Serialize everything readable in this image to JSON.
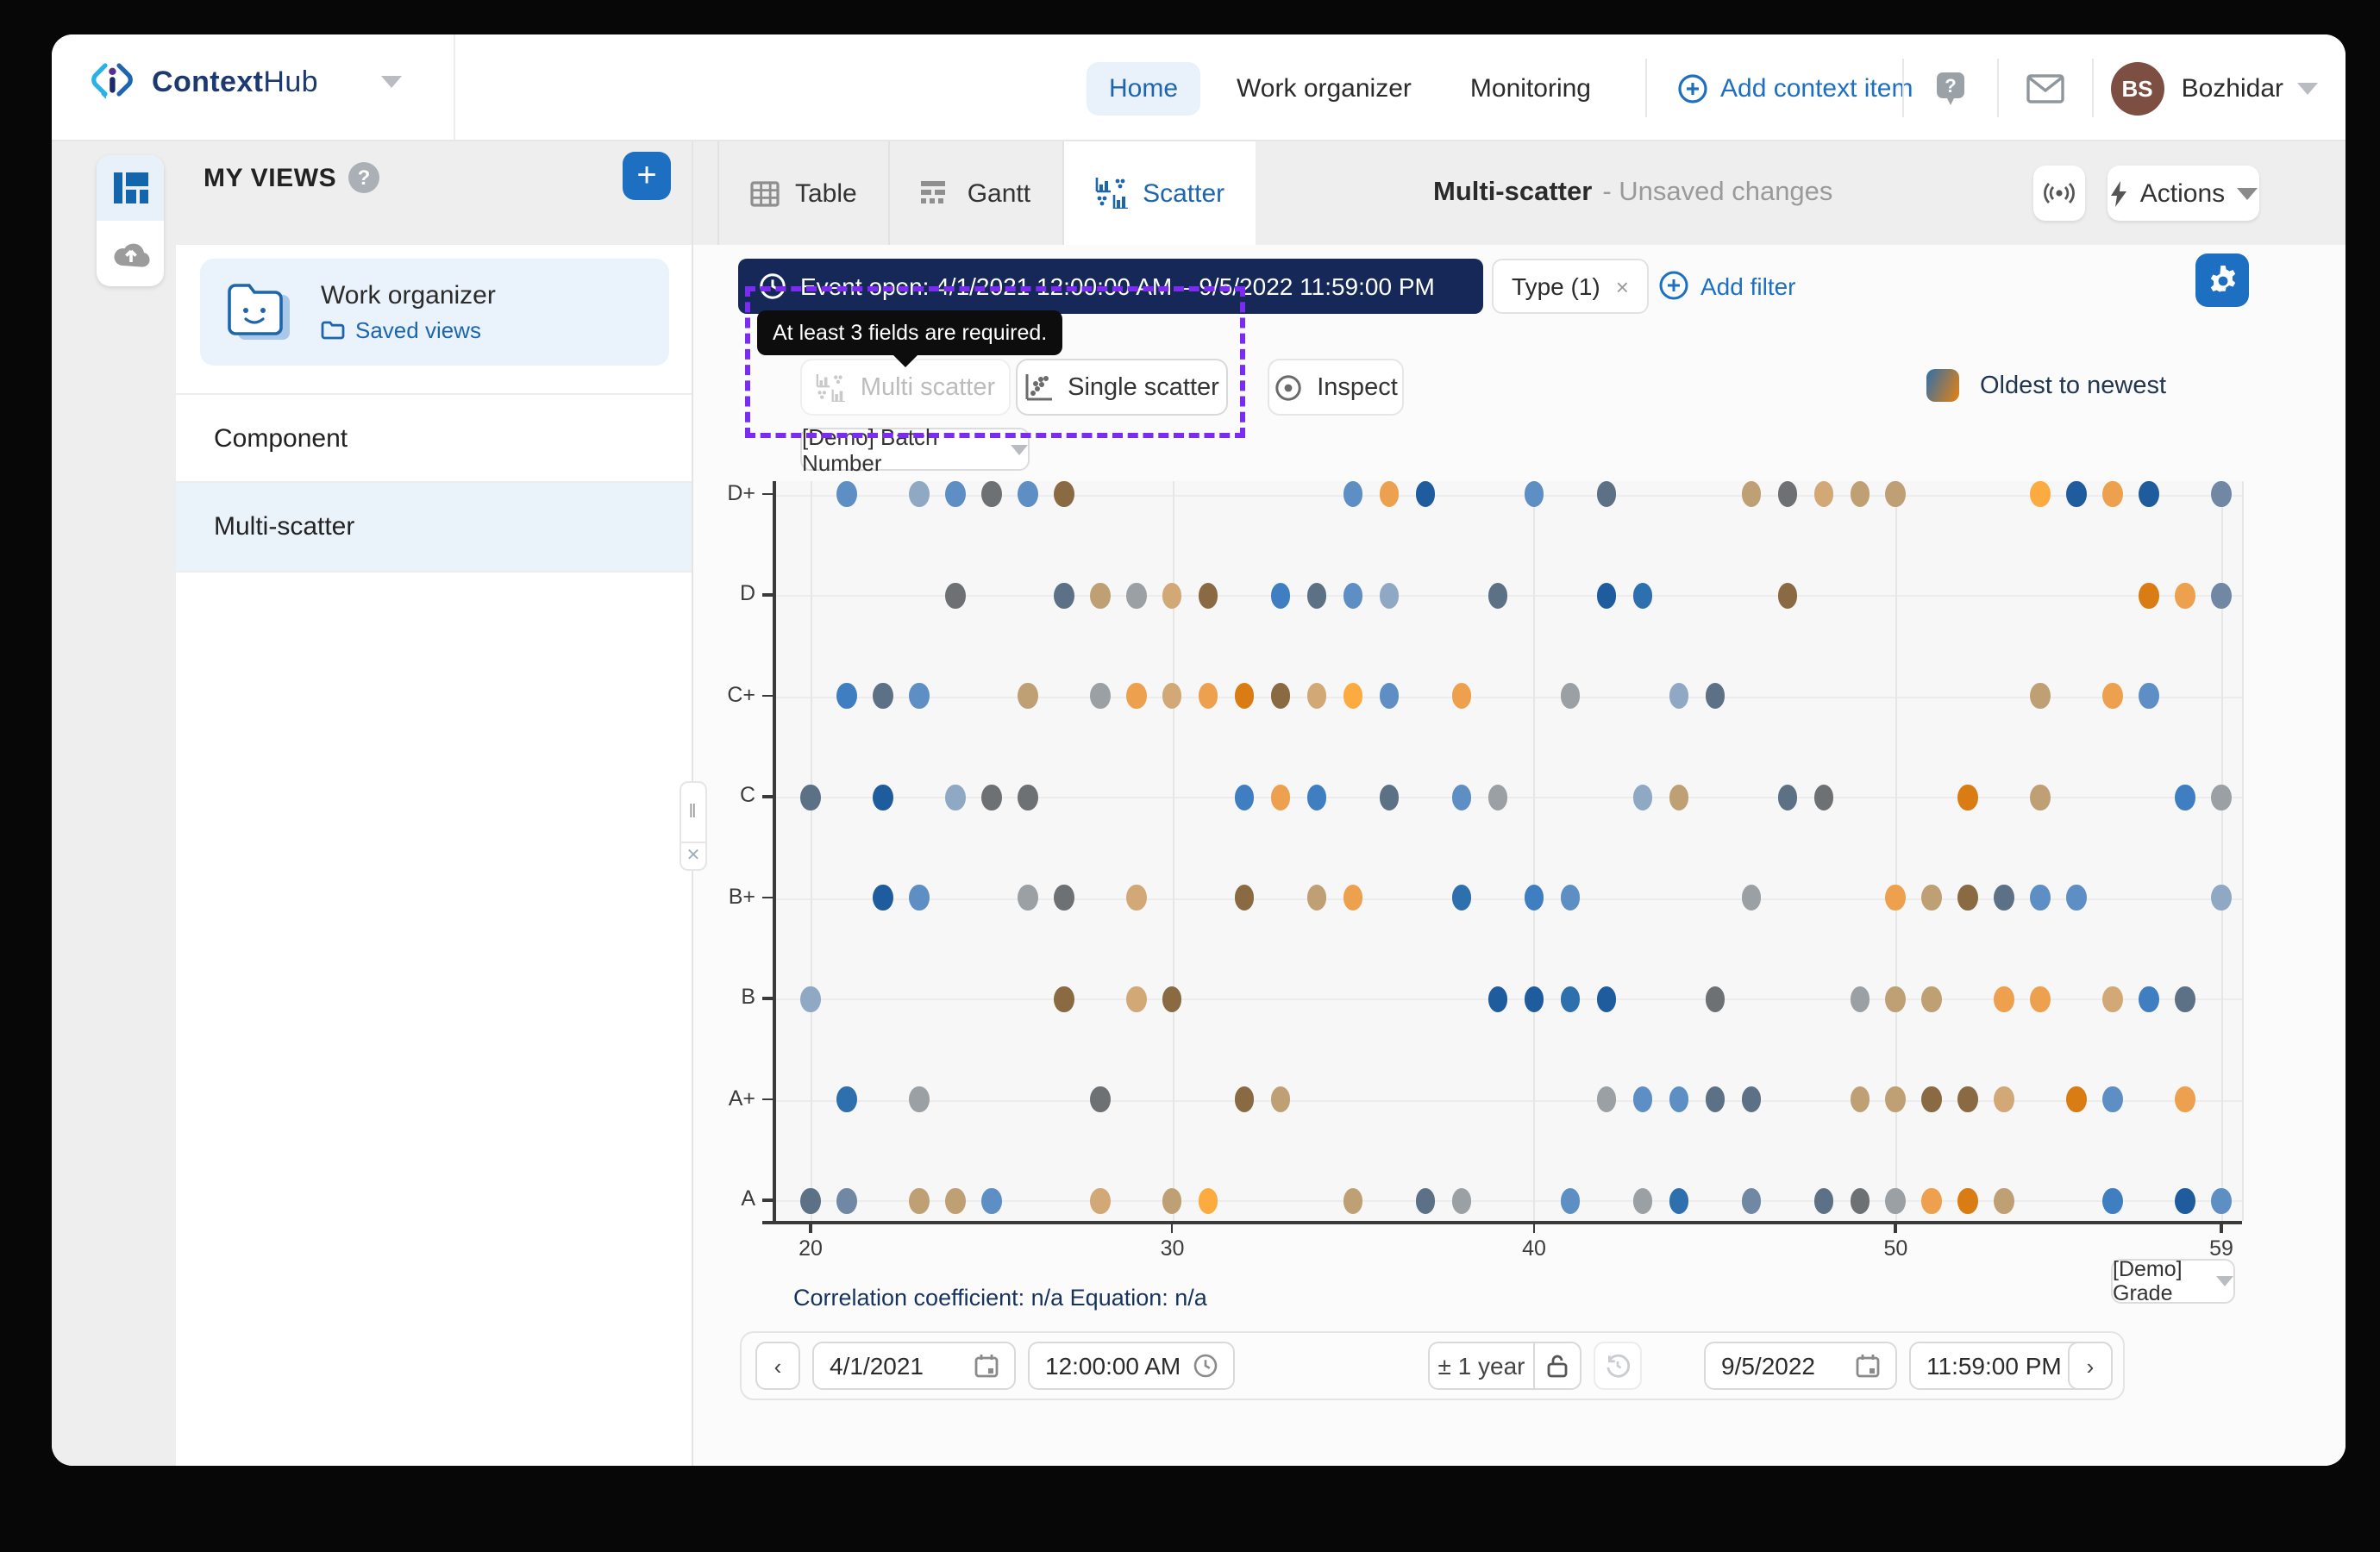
{
  "header": {
    "brand_bold": "Context",
    "brand_light": "Hub",
    "nav": [
      {
        "label": "Home",
        "active": true
      },
      {
        "label": "Work organizer",
        "active": false
      },
      {
        "label": "Monitoring",
        "active": false
      }
    ],
    "add_context_item": "Add context item",
    "user": {
      "initials": "BS",
      "name": "Bozhidar"
    }
  },
  "sidebar": {
    "title": "MY VIEWS",
    "workspace_card": {
      "title": "Work organizer",
      "link": "Saved views"
    },
    "items": [
      {
        "label": "Component",
        "active": false
      },
      {
        "label": "Multi-scatter",
        "active": true
      }
    ]
  },
  "toolbar": {
    "tabs": [
      {
        "label": "Table",
        "active": false
      },
      {
        "label": "Gantt",
        "active": false
      },
      {
        "label": "Scatter",
        "active": true
      }
    ],
    "title": "Multi-scatter",
    "subtitle": "- Unsaved changes",
    "actions_label": "Actions"
  },
  "filters": {
    "event_pill": "Event open: 4/1/2021 12:00:00 AM – 9/5/2022 11:59:00 PM",
    "type_pill": "Type (1)",
    "type_close": "×",
    "add_filter": "Add filter",
    "tooltip": "At least 3 fields are required."
  },
  "controls": {
    "multi_scatter": "Multi scatter",
    "single_scatter": "Single scatter",
    "inspect": "Inspect",
    "x_axis_selector": "[Demo] Batch Number",
    "y_axis_selector": "[Demo] Grade",
    "legend_label": "Oldest to newest"
  },
  "footer": {
    "correlation": "Correlation coefficient: n/a Equation: n/a",
    "start_date": "4/1/2021",
    "start_time": "12:00:00 AM",
    "range": "± 1 year",
    "end_date": "9/5/2022",
    "end_time": "11:59:00 PM"
  },
  "colors": {
    "accent": "#1d6fc2",
    "event_pill_bg": "#152858",
    "highlight_dashed": "#7b2cf0",
    "active_tab_text": "#1d66ad"
  },
  "chart_data": {
    "type": "scatter",
    "x_field": "[Demo] Batch Number",
    "y_field": "[Demo] Grade",
    "x_ticks": [
      20,
      30,
      40,
      50,
      59
    ],
    "xlim": [
      20,
      59
    ],
    "y_categories": [
      "D+",
      "D",
      "C+",
      "C",
      "B+",
      "B",
      "A+",
      "A"
    ],
    "grid": true,
    "legend": {
      "label": "Oldest to newest",
      "gradient": [
        "#2e6fad",
        "#e8820e"
      ],
      "position": "top-right"
    },
    "palette": {
      "b1": "#1f5c9e",
      "b2": "#2e6fad",
      "b3": "#5d8fc4",
      "b4": "#8fa8c4",
      "b5": "#3f7fc1",
      "s1": "#5c7186",
      "s2": "#7088a3",
      "g1": "#6e7173",
      "g2": "#9aa0a3",
      "t1": "#bfa075",
      "t2": "#8a6a42",
      "t3": "#d2a876",
      "o1": "#eda04e",
      "o2": "#d97c14",
      "o3": "#fbab40"
    },
    "points": [
      [
        21,
        "D+",
        "b3"
      ],
      [
        23,
        "D+",
        "b4"
      ],
      [
        24,
        "D+",
        "b3"
      ],
      [
        25,
        "D+",
        "g1"
      ],
      [
        26,
        "D+",
        "b3"
      ],
      [
        27,
        "D+",
        "t2"
      ],
      [
        35,
        "D+",
        "b3"
      ],
      [
        36,
        "D+",
        "o1"
      ],
      [
        37,
        "D+",
        "b1"
      ],
      [
        40,
        "D+",
        "b3"
      ],
      [
        42,
        "D+",
        "s1"
      ],
      [
        46,
        "D+",
        "t1"
      ],
      [
        47,
        "D+",
        "g1"
      ],
      [
        48,
        "D+",
        "t3"
      ],
      [
        49,
        "D+",
        "t1"
      ],
      [
        50,
        "D+",
        "t1"
      ],
      [
        54,
        "D+",
        "o3"
      ],
      [
        55,
        "D+",
        "b1"
      ],
      [
        56,
        "D+",
        "o1"
      ],
      [
        57,
        "D+",
        "b1"
      ],
      [
        59,
        "D+",
        "s2"
      ],
      [
        24,
        "D",
        "g1"
      ],
      [
        27,
        "D",
        "s1"
      ],
      [
        28,
        "D",
        "t1"
      ],
      [
        29,
        "D",
        "g2"
      ],
      [
        30,
        "D",
        "t3"
      ],
      [
        31,
        "D",
        "t2"
      ],
      [
        33,
        "D",
        "b5"
      ],
      [
        34,
        "D",
        "s1"
      ],
      [
        35,
        "D",
        "b3"
      ],
      [
        36,
        "D",
        "b4"
      ],
      [
        39,
        "D",
        "s1"
      ],
      [
        42,
        "D",
        "b1"
      ],
      [
        43,
        "D",
        "b2"
      ],
      [
        47,
        "D",
        "t2"
      ],
      [
        57,
        "D",
        "o2"
      ],
      [
        58,
        "D",
        "o1"
      ],
      [
        59,
        "D",
        "s2"
      ],
      [
        21,
        "C+",
        "b5"
      ],
      [
        22,
        "C+",
        "s1"
      ],
      [
        23,
        "C+",
        "b3"
      ],
      [
        26,
        "C+",
        "t1"
      ],
      [
        28,
        "C+",
        "g2"
      ],
      [
        29,
        "C+",
        "o1"
      ],
      [
        30,
        "C+",
        "t3"
      ],
      [
        31,
        "C+",
        "o1"
      ],
      [
        32,
        "C+",
        "o2"
      ],
      [
        33,
        "C+",
        "t2"
      ],
      [
        34,
        "C+",
        "t3"
      ],
      [
        35,
        "C+",
        "o3"
      ],
      [
        36,
        "C+",
        "b3"
      ],
      [
        38,
        "C+",
        "o1"
      ],
      [
        41,
        "C+",
        "g2"
      ],
      [
        44,
        "C+",
        "b4"
      ],
      [
        45,
        "C+",
        "s1"
      ],
      [
        54,
        "C+",
        "t1"
      ],
      [
        56,
        "C+",
        "o1"
      ],
      [
        57,
        "C+",
        "b3"
      ],
      [
        20,
        "C",
        "s1"
      ],
      [
        22,
        "C",
        "b1"
      ],
      [
        24,
        "C",
        "b4"
      ],
      [
        25,
        "C",
        "g1"
      ],
      [
        26,
        "C",
        "g1"
      ],
      [
        32,
        "C",
        "b5"
      ],
      [
        33,
        "C",
        "o1"
      ],
      [
        34,
        "C",
        "b5"
      ],
      [
        36,
        "C",
        "s1"
      ],
      [
        38,
        "C",
        "b3"
      ],
      [
        39,
        "C",
        "g2"
      ],
      [
        43,
        "C",
        "b4"
      ],
      [
        44,
        "C",
        "t1"
      ],
      [
        47,
        "C",
        "s1"
      ],
      [
        48,
        "C",
        "g1"
      ],
      [
        52,
        "C",
        "o2"
      ],
      [
        54,
        "C",
        "t1"
      ],
      [
        58,
        "C",
        "b5"
      ],
      [
        59,
        "C",
        "g2"
      ],
      [
        22,
        "B+",
        "b1"
      ],
      [
        23,
        "B+",
        "b3"
      ],
      [
        26,
        "B+",
        "g2"
      ],
      [
        27,
        "B+",
        "g1"
      ],
      [
        29,
        "B+",
        "t3"
      ],
      [
        32,
        "B+",
        "t2"
      ],
      [
        34,
        "B+",
        "t1"
      ],
      [
        35,
        "B+",
        "o1"
      ],
      [
        38,
        "B+",
        "b2"
      ],
      [
        40,
        "B+",
        "b5"
      ],
      [
        41,
        "B+",
        "b3"
      ],
      [
        46,
        "B+",
        "g2"
      ],
      [
        50,
        "B+",
        "o1"
      ],
      [
        51,
        "B+",
        "t1"
      ],
      [
        52,
        "B+",
        "t2"
      ],
      [
        53,
        "B+",
        "s1"
      ],
      [
        54,
        "B+",
        "b3"
      ],
      [
        55,
        "B+",
        "b3"
      ],
      [
        59,
        "B+",
        "b4"
      ],
      [
        20,
        "B",
        "b4"
      ],
      [
        27,
        "B",
        "t2"
      ],
      [
        29,
        "B",
        "t3"
      ],
      [
        30,
        "B",
        "t2"
      ],
      [
        39,
        "B",
        "b1"
      ],
      [
        40,
        "B",
        "b1"
      ],
      [
        41,
        "B",
        "b2"
      ],
      [
        42,
        "B",
        "b1"
      ],
      [
        45,
        "B",
        "g1"
      ],
      [
        49,
        "B",
        "g2"
      ],
      [
        50,
        "B",
        "t1"
      ],
      [
        51,
        "B",
        "t1"
      ],
      [
        53,
        "B",
        "o1"
      ],
      [
        54,
        "B",
        "o1"
      ],
      [
        56,
        "B",
        "t3"
      ],
      [
        57,
        "B",
        "b5"
      ],
      [
        58,
        "B",
        "s1"
      ],
      [
        21,
        "A+",
        "b2"
      ],
      [
        23,
        "A+",
        "g2"
      ],
      [
        28,
        "A+",
        "g1"
      ],
      [
        32,
        "A+",
        "t2"
      ],
      [
        33,
        "A+",
        "t1"
      ],
      [
        42,
        "A+",
        "g2"
      ],
      [
        43,
        "A+",
        "b3"
      ],
      [
        44,
        "A+",
        "b3"
      ],
      [
        45,
        "A+",
        "s1"
      ],
      [
        46,
        "A+",
        "s1"
      ],
      [
        49,
        "A+",
        "t1"
      ],
      [
        50,
        "A+",
        "t1"
      ],
      [
        51,
        "A+",
        "t2"
      ],
      [
        52,
        "A+",
        "t2"
      ],
      [
        53,
        "A+",
        "t3"
      ],
      [
        55,
        "A+",
        "o2"
      ],
      [
        56,
        "A+",
        "b3"
      ],
      [
        58,
        "A+",
        "o1"
      ],
      [
        20,
        "A",
        "s1"
      ],
      [
        21,
        "A",
        "s2"
      ],
      [
        23,
        "A",
        "t1"
      ],
      [
        24,
        "A",
        "t1"
      ],
      [
        25,
        "A",
        "b3"
      ],
      [
        28,
        "A",
        "t3"
      ],
      [
        30,
        "A",
        "t1"
      ],
      [
        31,
        "A",
        "o3"
      ],
      [
        35,
        "A",
        "t1"
      ],
      [
        37,
        "A",
        "s1"
      ],
      [
        38,
        "A",
        "g2"
      ],
      [
        41,
        "A",
        "b3"
      ],
      [
        43,
        "A",
        "g2"
      ],
      [
        44,
        "A",
        "b2"
      ],
      [
        46,
        "A",
        "s2"
      ],
      [
        48,
        "A",
        "s1"
      ],
      [
        49,
        "A",
        "g1"
      ],
      [
        50,
        "A",
        "g2"
      ],
      [
        51,
        "A",
        "o1"
      ],
      [
        52,
        "A",
        "o2"
      ],
      [
        53,
        "A",
        "t1"
      ],
      [
        56,
        "A",
        "b5"
      ],
      [
        58,
        "A",
        "b1"
      ],
      [
        59,
        "A",
        "b3"
      ]
    ]
  }
}
